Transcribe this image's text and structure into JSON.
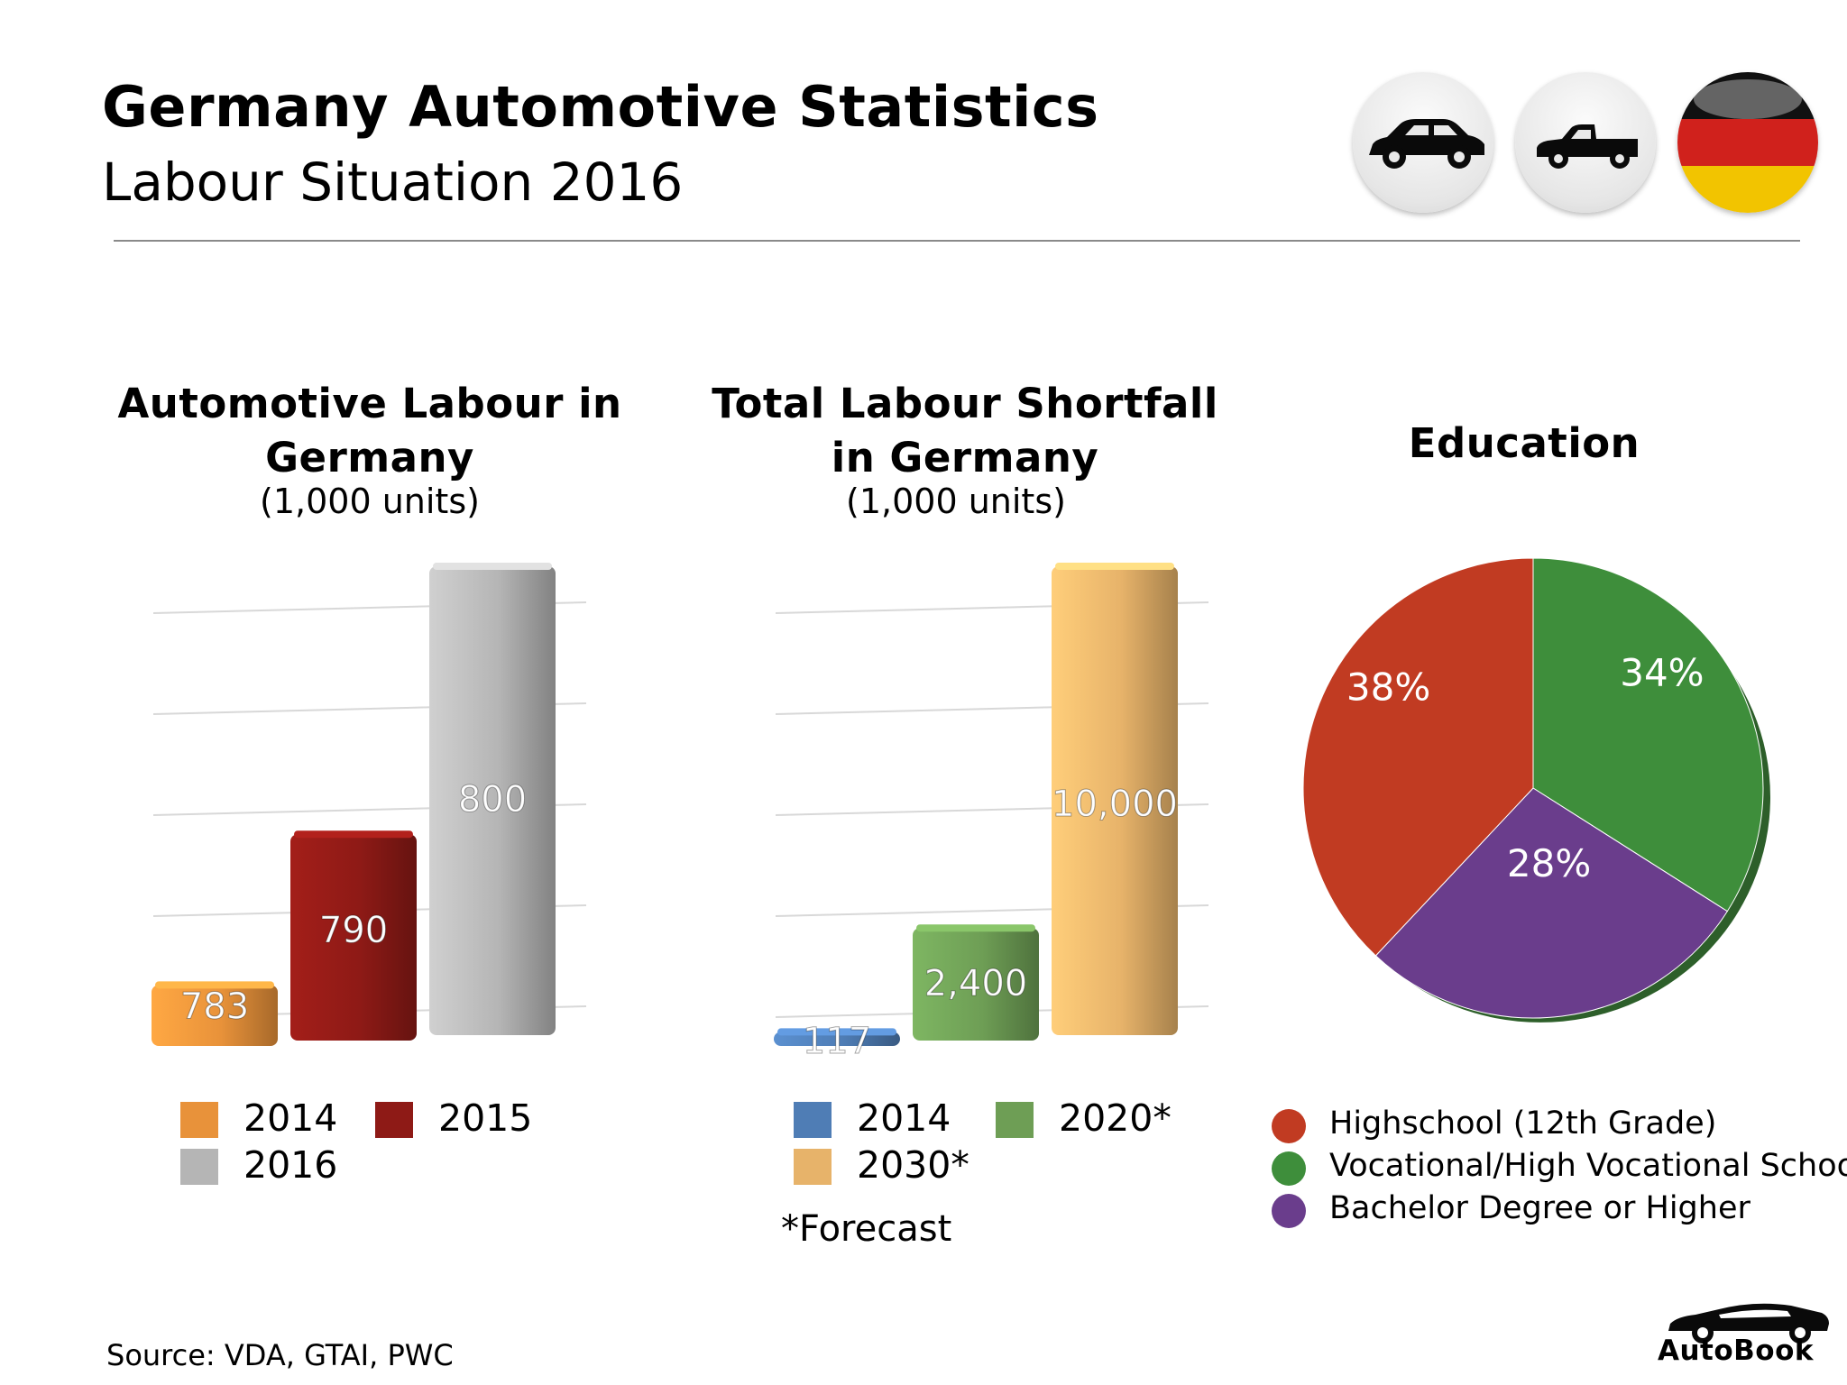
{
  "header": {
    "title": "Germany Automotive Statistics",
    "subtitle": "Labour Situation 2016"
  },
  "icons": [
    "sedan-car-icon",
    "pickup-truck-icon",
    "germany-flag-icon"
  ],
  "colors": {
    "orange": "#E8923A",
    "dark_red": "#8E1A16",
    "gray": "#B5B5B5",
    "blue": "#4F7DB5",
    "green": "#6E9E55",
    "tan": "#E7B36A",
    "pie_red": "#C13B22",
    "pie_green": "#3E8E3B",
    "pie_purple": "#6A3D8C"
  },
  "chart_data": [
    {
      "type": "bar",
      "title": "Automotive Labour in Germany",
      "subtitle": "(1,000 units)",
      "categories": [
        "2014",
        "2015",
        "2016"
      ],
      "values": [
        783,
        790,
        800
      ],
      "labels": [
        "783",
        "790",
        "800"
      ],
      "legend": [
        "2014",
        "2015",
        "2016"
      ],
      "colors": [
        "#E8923A",
        "#8E1A16",
        "#B5B5B5"
      ],
      "grid": true
    },
    {
      "type": "bar",
      "title": "Total Labour Shortfall in Germany",
      "subtitle": "(1,000 units)",
      "categories": [
        "2014",
        "2020*",
        "2030*"
      ],
      "values": [
        117,
        2400,
        10000
      ],
      "labels": [
        "117",
        "2,400",
        "10,000"
      ],
      "legend": [
        "2014",
        "2020*",
        "2030*"
      ],
      "colors": [
        "#4F7DB5",
        "#6E9E55",
        "#E7B36A"
      ],
      "grid": true,
      "note": "*Forecast"
    },
    {
      "type": "pie",
      "title": "Education",
      "categories": [
        "Highschool (12th Grade)",
        "Vocational/High Vocational School",
        "Bachelor Degree or Higher"
      ],
      "values": [
        38,
        34,
        28
      ],
      "labels": [
        "38%",
        "34%",
        "28%"
      ],
      "colors": [
        "#C13B22",
        "#3E8E3B",
        "#6A3D8C"
      ]
    }
  ],
  "footer": {
    "source": "Source: VDA, GTAI, PWC",
    "brand": "AutoBook"
  }
}
